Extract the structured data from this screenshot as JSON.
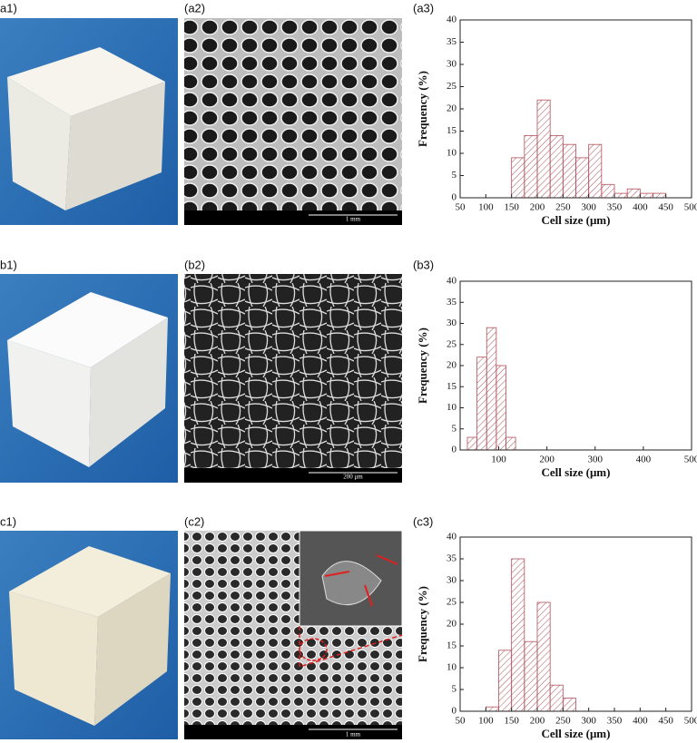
{
  "panel_labels": [
    "a1)",
    "(a2)",
    "(a3)",
    "b1)",
    "(b2)",
    "(b3)",
    "c1)",
    "(c2)",
    "(c3)"
  ],
  "scale_bars": [
    "1 mm",
    "200 μm",
    "1 mm"
  ],
  "chart_data": [
    {
      "type": "histogram",
      "x_label": "Cell size (μm)",
      "y_label": "Frequency (%)",
      "color": "#b0505a",
      "bins": [
        150,
        175,
        200,
        225,
        250,
        275,
        300,
        325,
        350,
        375,
        400,
        425,
        450
      ],
      "values": [
        9,
        14,
        22,
        14,
        12,
        9,
        12,
        3,
        1,
        2,
        1,
        1
      ],
      "xlim": [
        50,
        500
      ],
      "xticks": [
        50,
        100,
        150,
        200,
        250,
        300,
        350,
        400,
        450,
        500
      ],
      "ylim": [
        0,
        40
      ],
      "yticks": [
        0,
        5,
        10,
        15,
        20,
        25,
        30,
        35,
        40
      ]
    },
    {
      "type": "histogram",
      "x_label": "Cell size (μm)",
      "y_label": "Frequency (%)",
      "color": "#b0505a",
      "bins": [
        35,
        55,
        75,
        95,
        115,
        135
      ],
      "values": [
        3,
        22,
        29,
        20,
        3
      ],
      "xlim": [
        20,
        500
      ],
      "xticks": [
        100,
        200,
        300,
        400,
        500
      ],
      "ylim": [
        0,
        40
      ],
      "yticks": [
        0,
        5,
        10,
        15,
        20,
        25,
        30,
        35,
        40
      ]
    },
    {
      "type": "histogram",
      "x_label": "Cell size (μm)",
      "y_label": "Frequency (%)",
      "color": "#b0505a",
      "bins": [
        100,
        125,
        150,
        175,
        200,
        225,
        250,
        275
      ],
      "values": [
        1,
        14,
        35,
        16,
        25,
        6,
        3
      ],
      "xlim": [
        50,
        500
      ],
      "xticks": [
        50,
        100,
        150,
        200,
        250,
        300,
        350,
        400,
        450,
        500
      ],
      "ylim": [
        0,
        40
      ],
      "yticks": [
        0,
        5,
        10,
        15,
        20,
        25,
        30,
        35,
        40
      ]
    }
  ]
}
